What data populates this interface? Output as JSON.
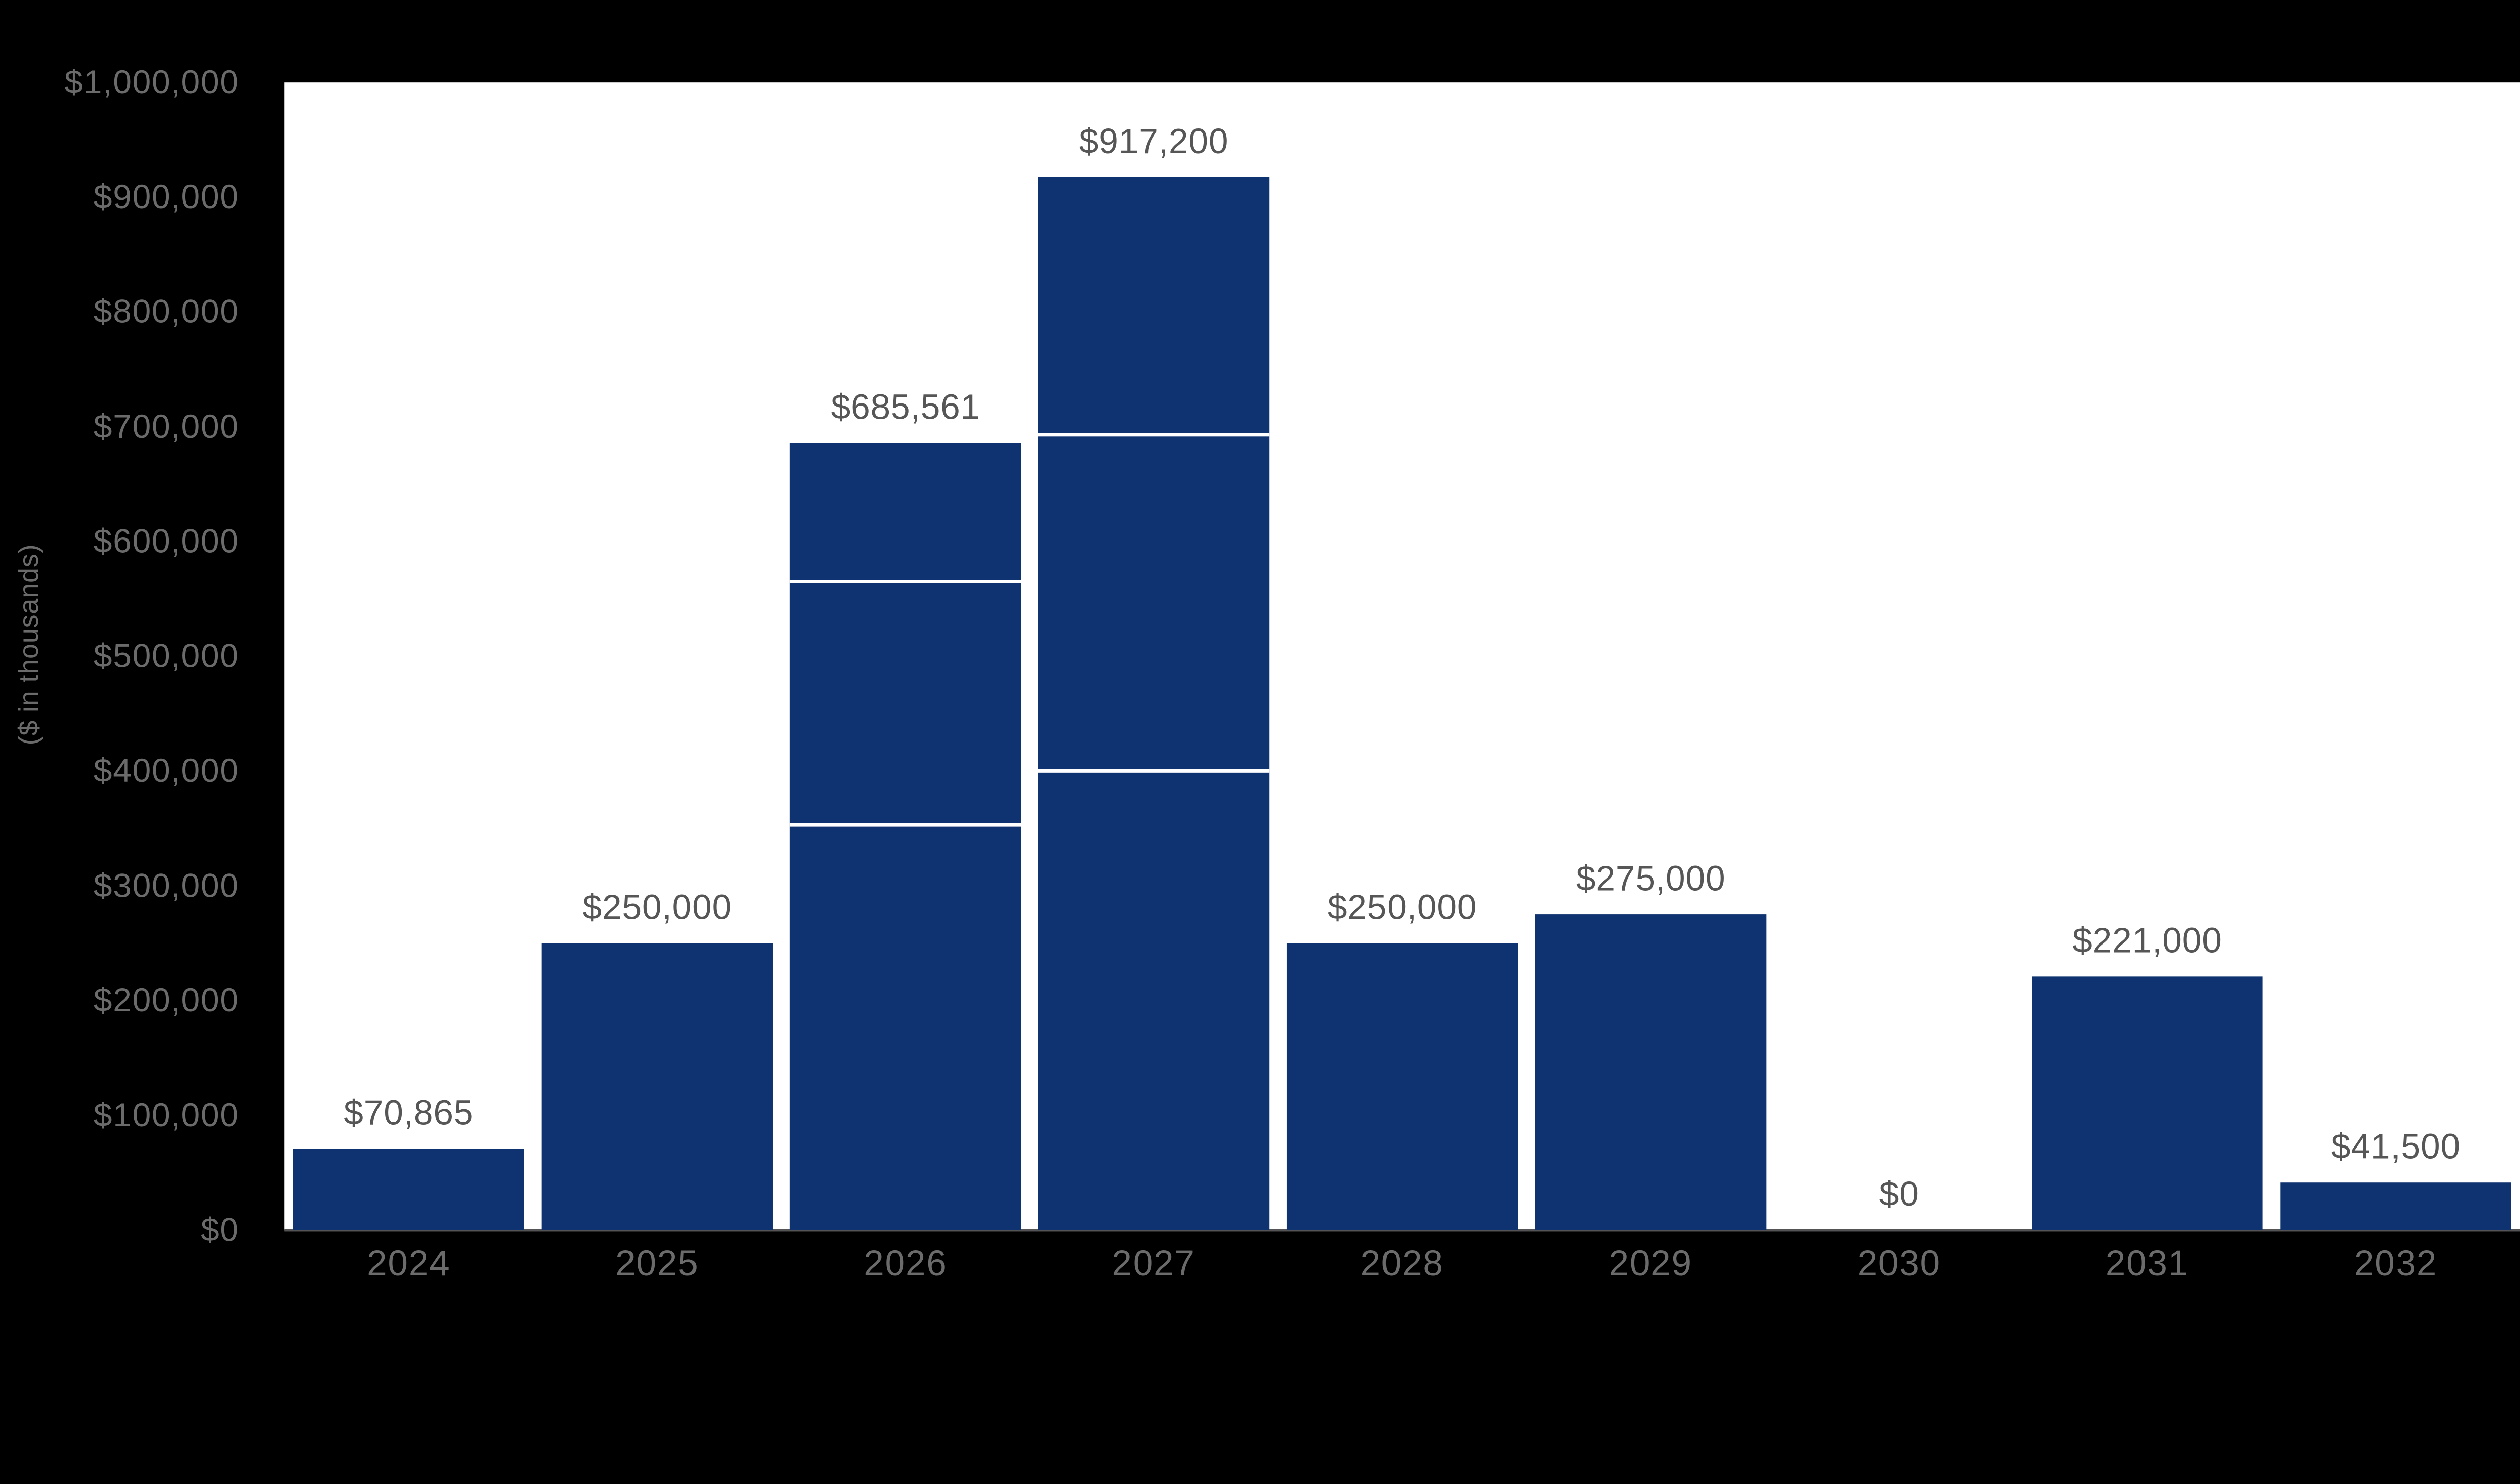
{
  "colors": {
    "page_bg": "#000000",
    "plot_bg": "#FFFFFF",
    "bar": "#0F3270",
    "segment_divider": "#FFFFFF",
    "axis_line": "#545456",
    "axis_text": "#6B6B6B",
    "value_text": "#565656"
  },
  "y_axis": {
    "title": "($ in thousands)",
    "tick_labels": [
      "$1,000,000",
      "$900,000",
      "$800,000",
      "$700,000",
      "$600,000",
      "$500,000",
      "$400,000",
      "$300,000",
      "$200,000",
      "$100,000",
      "$0"
    ]
  },
  "chart_data": {
    "type": "bar",
    "stacked": true,
    "title": "",
    "xlabel": "",
    "ylabel": "($ in thousands)",
    "ylim": [
      0,
      1000000
    ],
    "ytick_interval": 100000,
    "grid": false,
    "legend": "none",
    "categories": [
      "2024",
      "2025",
      "2026",
      "2027",
      "2028",
      "2029",
      "2030",
      "2031",
      "2032"
    ],
    "totals": [
      70865,
      250000,
      685561,
      917200,
      250000,
      275000,
      0,
      221000,
      41500
    ],
    "segments": [
      [
        70865
      ],
      [
        250000
      ],
      [
        353000,
        212000,
        120561
      ],
      [
        400000,
        293000,
        224200
      ],
      [
        250000
      ],
      [
        275000
      ],
      [
        0
      ],
      [
        221000
      ],
      [
        41500
      ]
    ],
    "bar_labels": [
      "$70,865",
      "$250,000",
      "$685,561",
      "$917,200",
      "$250,000",
      "$275,000",
      "$0",
      "$221,000",
      "$41,500"
    ]
  }
}
